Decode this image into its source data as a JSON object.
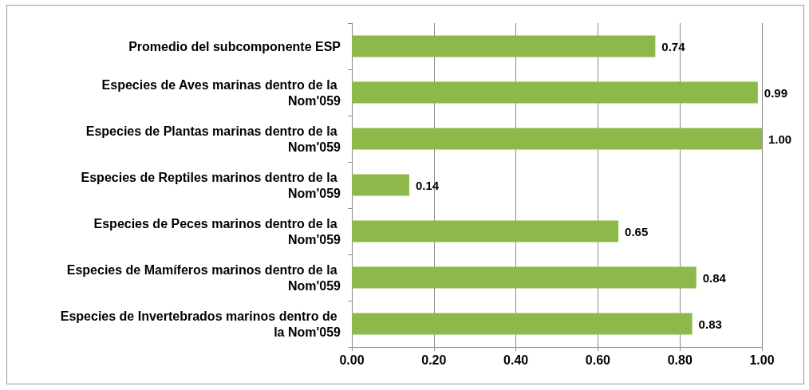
{
  "chart_data": {
    "type": "bar",
    "orientation": "horizontal",
    "categories": [
      "Promedio del subcomponente ESP",
      "Especies de Aves marinas dentro de la Nom'059",
      "Especies de Plantas marinas dentro de la Nom'059",
      "Especies de Reptiles marinos dentro de la Nom'059",
      "Especies de Peces marinos dentro de la Nom'059",
      "Especies de Mamíferos marinos dentro de la Nom'059",
      "Especies de Invertebrados marinos dentro de la Nom'059"
    ],
    "values": [
      0.74,
      0.99,
      1.0,
      0.14,
      0.65,
      0.84,
      0.83
    ],
    "value_labels": [
      "0.74",
      "0.99",
      "1.00",
      "0.14",
      "0.65",
      "0.84",
      "0.83"
    ],
    "color": "#8db84a",
    "xlim": [
      0,
      1
    ],
    "xticks": [
      {
        "value": 0,
        "label": "0.00"
      },
      {
        "value": 0.2,
        "label": "0.20"
      },
      {
        "value": 0.4,
        "label": "0.40"
      },
      {
        "value": 0.6,
        "label": "0.60"
      },
      {
        "value": 0.8,
        "label": "0.80"
      },
      {
        "value": 1,
        "label": "1.00"
      }
    ],
    "grid": "x"
  }
}
